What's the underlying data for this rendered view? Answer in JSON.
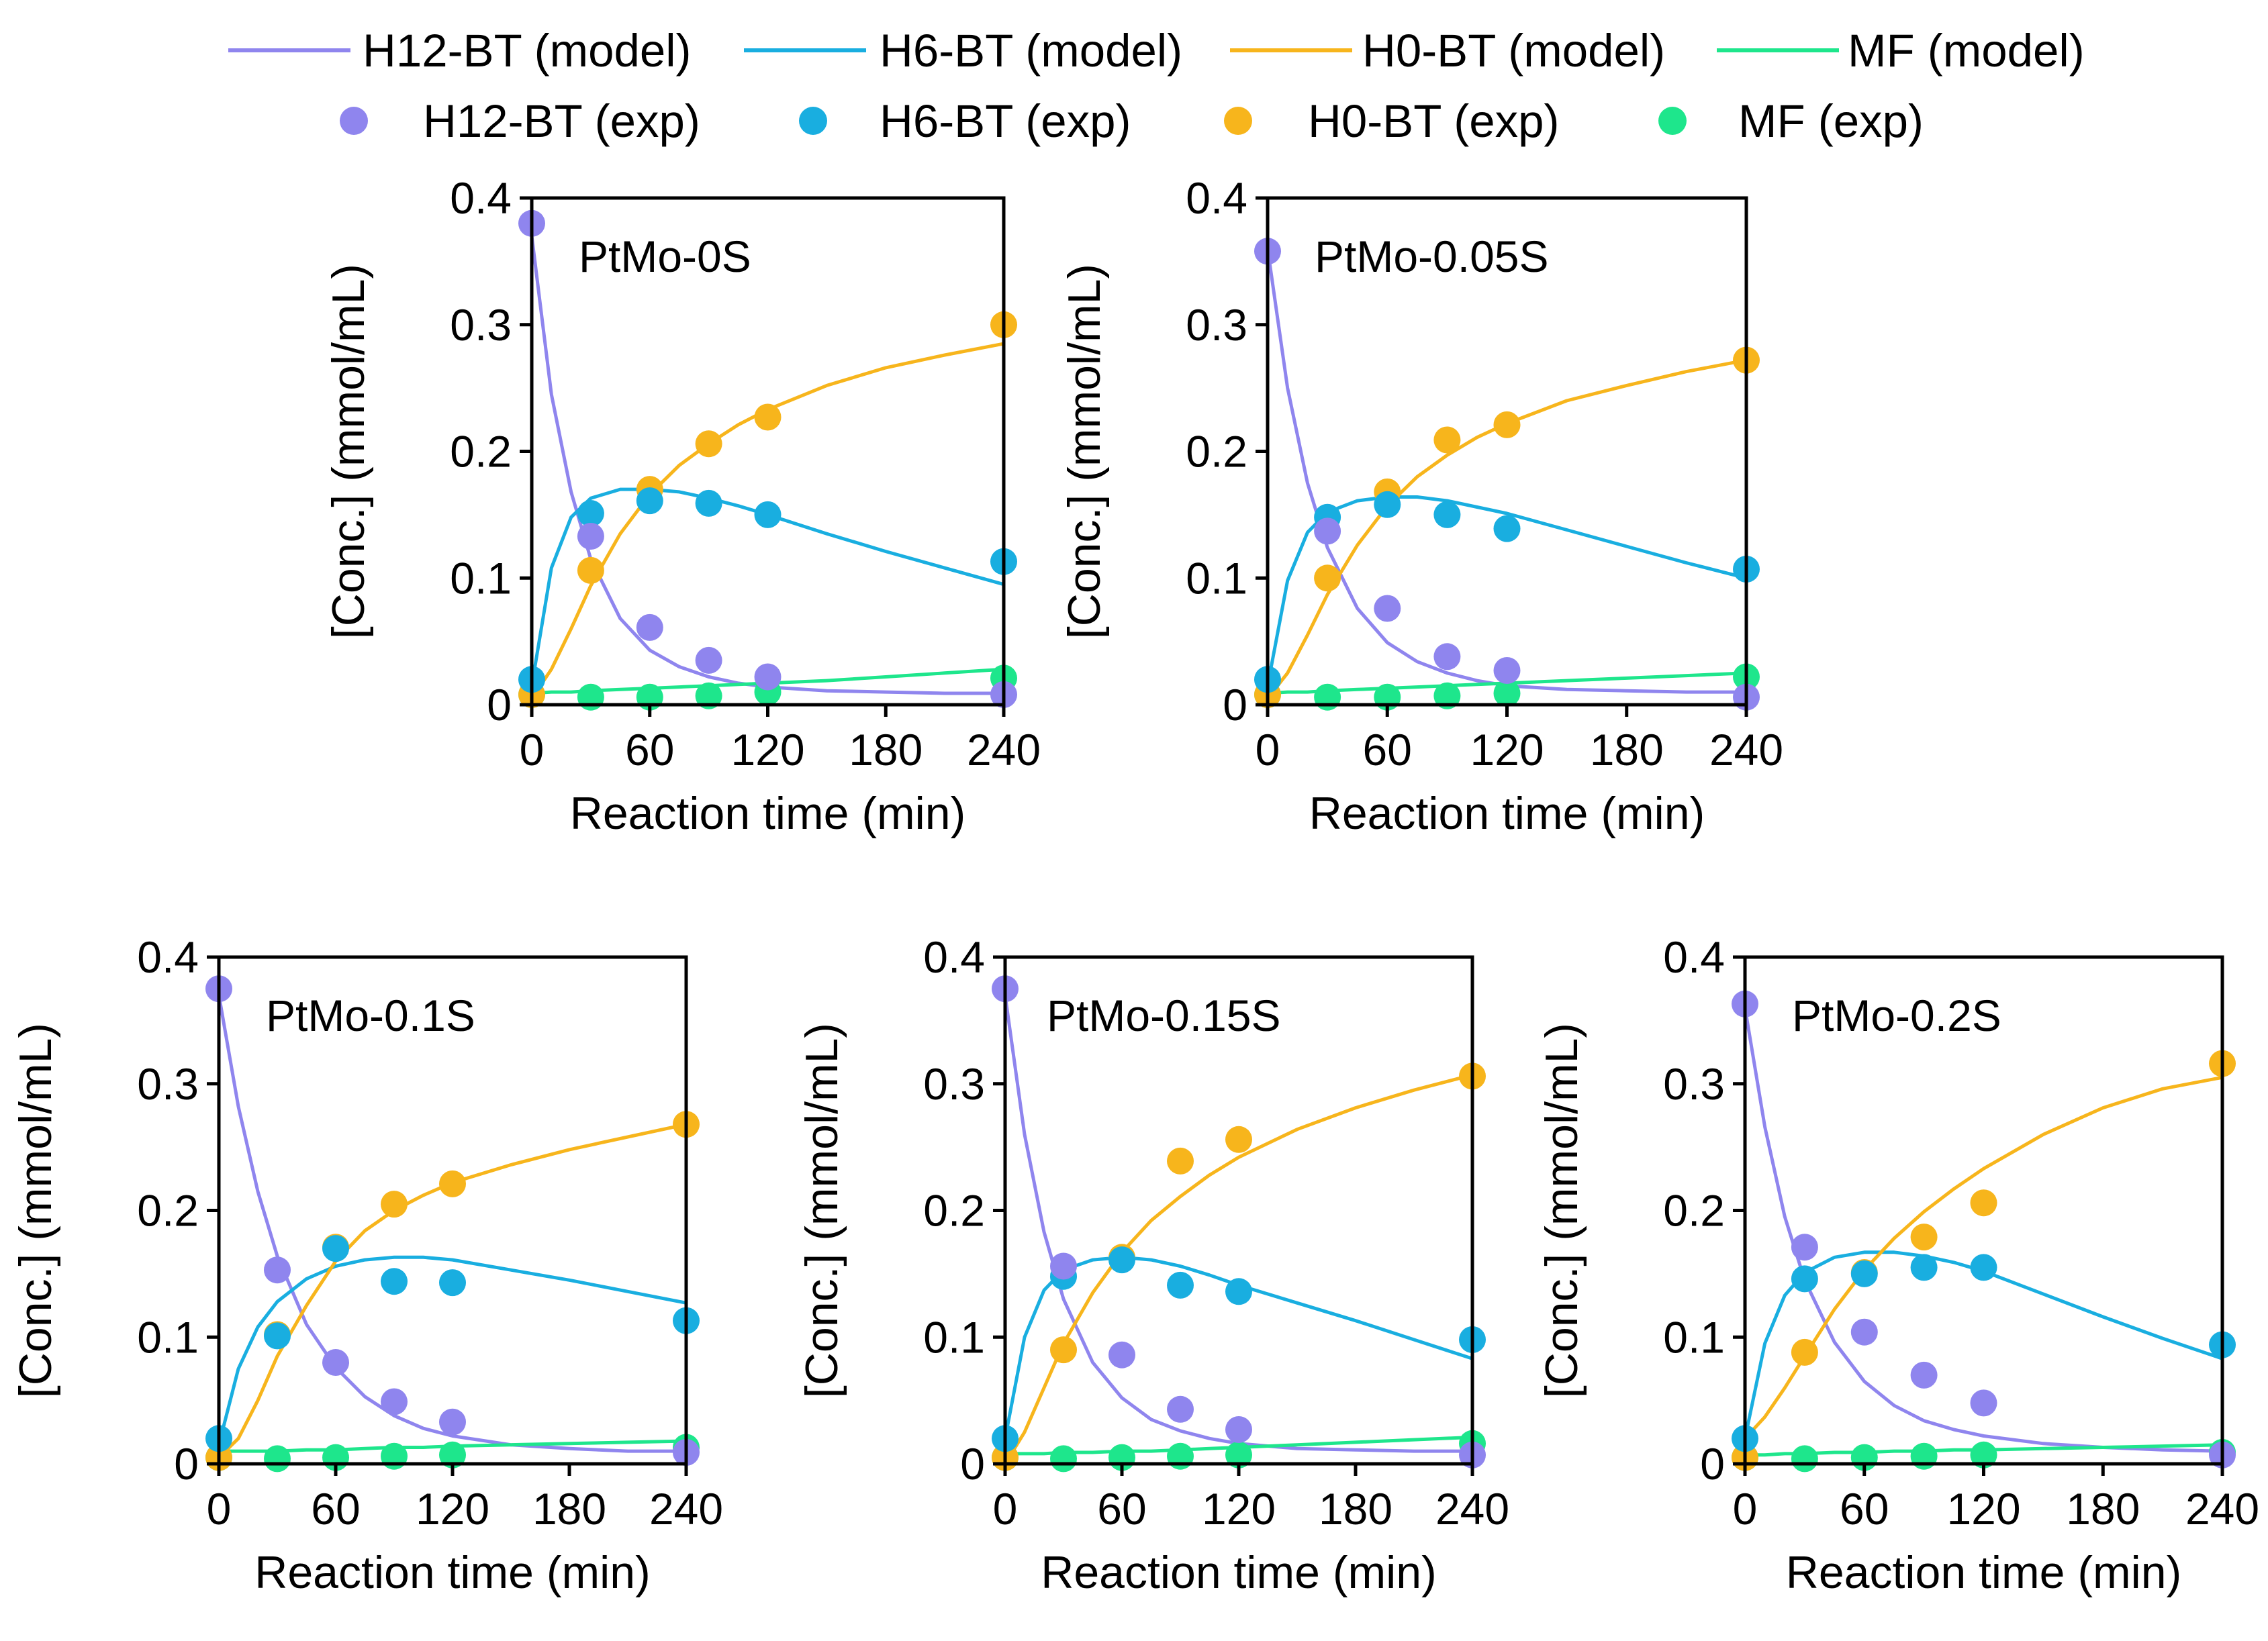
{
  "legend": {
    "model_suffix": "(model)",
    "exp_suffix": "(exp)",
    "entries": [
      {
        "series": "H12-BT",
        "model_label": "H12-BT (model)",
        "exp_label": "H12-BT (exp)",
        "color": "#8f85ee"
      },
      {
        "series": "H6-BT",
        "model_label": "H6-BT (model)",
        "exp_label": "H6-BT (exp)",
        "color": "#19aee0"
      },
      {
        "series": "H0-BT",
        "model_label": "H0-BT (model)",
        "exp_label": "H0-BT (exp)",
        "color": "#f7b51c"
      },
      {
        "series": "MF",
        "model_label": "MF (model)",
        "exp_label": "MF (exp)",
        "color": "#1ee68c"
      }
    ]
  },
  "chart_data": [
    {
      "type": "line+scatter",
      "title": "PtMo-0S",
      "xlabel": "Reaction time (min)",
      "ylabel": "[Conc.] (mmol/mL)",
      "xlim": [
        0,
        240
      ],
      "ylim": [
        0,
        0.4
      ],
      "xticks": [
        0,
        60,
        120,
        180,
        240
      ],
      "yticks": [
        0,
        0.1,
        0.2,
        0.3,
        0.4
      ],
      "ytick_labels": [
        "0",
        "0.1",
        "0.2",
        "0.3",
        "0.4"
      ],
      "experimental": {
        "x": [
          0,
          30,
          60,
          90,
          120,
          240
        ],
        "series": [
          {
            "name": "H12-BT",
            "values": [
              0.38,
              0.133,
              0.061,
              0.035,
              0.022,
              0.008
            ]
          },
          {
            "name": "H6-BT",
            "values": [
              0.02,
              0.151,
              0.161,
              0.159,
              0.15,
              0.113
            ]
          },
          {
            "name": "H0-BT",
            "values": [
              0.008,
              0.106,
              0.17,
              0.206,
              0.227,
              0.3
            ]
          },
          {
            "name": "MF",
            "values": [
              0.008,
              0.006,
              0.006,
              0.007,
              0.01,
              0.021
            ]
          }
        ]
      },
      "model": {
        "x": [
          0,
          10,
          20,
          30,
          45,
          60,
          75,
          90,
          105,
          120,
          150,
          180,
          210,
          240
        ],
        "series": [
          {
            "name": "H12-BT",
            "values": [
              0.37,
              0.245,
              0.168,
              0.115,
              0.068,
              0.043,
              0.03,
              0.022,
              0.017,
              0.014,
              0.011,
              0.01,
              0.009,
              0.009
            ]
          },
          {
            "name": "H6-BT",
            "values": [
              0.015,
              0.108,
              0.148,
              0.163,
              0.17,
              0.17,
              0.168,
              0.163,
              0.157,
              0.15,
              0.135,
              0.121,
              0.108,
              0.095
            ]
          },
          {
            "name": "H0-BT",
            "values": [
              0.005,
              0.028,
              0.06,
              0.094,
              0.135,
              0.166,
              0.189,
              0.206,
              0.221,
              0.233,
              0.252,
              0.266,
              0.276,
              0.285
            ]
          },
          {
            "name": "MF",
            "values": [
              0.009,
              0.01,
              0.01,
              0.011,
              0.012,
              0.013,
              0.014,
              0.015,
              0.016,
              0.017,
              0.019,
              0.022,
              0.025,
              0.028
            ]
          }
        ]
      }
    },
    {
      "type": "line+scatter",
      "title": "PtMo-0.05S",
      "xlabel": "Reaction time (min)",
      "ylabel": "[Conc.] (mmol/mL)",
      "xlim": [
        0,
        240
      ],
      "ylim": [
        0,
        0.4
      ],
      "xticks": [
        0,
        60,
        120,
        180,
        240
      ],
      "yticks": [
        0,
        0.1,
        0.2,
        0.3,
        0.4
      ],
      "ytick_labels": [
        "0",
        "0.1",
        "0.2",
        "0.3",
        "0.4"
      ],
      "experimental": {
        "x": [
          0,
          30,
          60,
          90,
          120,
          240
        ],
        "series": [
          {
            "name": "H12-BT",
            "values": [
              0.358,
              0.137,
              0.076,
              0.038,
              0.027,
              0.006
            ]
          },
          {
            "name": "H6-BT",
            "values": [
              0.02,
              0.148,
              0.158,
              0.15,
              0.139,
              0.107
            ]
          },
          {
            "name": "H0-BT",
            "values": [
              0.008,
              0.1,
              0.168,
              0.209,
              0.221,
              0.272
            ]
          },
          {
            "name": "MF",
            "values": [
              0.008,
              0.006,
              0.006,
              0.007,
              0.009,
              0.022
            ]
          }
        ]
      },
      "model": {
        "x": [
          0,
          10,
          20,
          30,
          45,
          60,
          75,
          90,
          105,
          120,
          150,
          180,
          210,
          240
        ],
        "series": [
          {
            "name": "H12-BT",
            "values": [
              0.36,
              0.25,
              0.175,
              0.124,
              0.076,
              0.049,
              0.034,
              0.025,
              0.019,
              0.015,
              0.012,
              0.011,
              0.01,
              0.01
            ]
          },
          {
            "name": "H6-BT",
            "values": [
              0.015,
              0.098,
              0.136,
              0.152,
              0.161,
              0.164,
              0.164,
              0.161,
              0.156,
              0.151,
              0.138,
              0.125,
              0.112,
              0.1
            ]
          },
          {
            "name": "H0-BT",
            "values": [
              0.005,
              0.025,
              0.055,
              0.087,
              0.126,
              0.157,
              0.18,
              0.197,
              0.211,
              0.222,
              0.24,
              0.252,
              0.263,
              0.272
            ]
          },
          {
            "name": "MF",
            "values": [
              0.009,
              0.01,
              0.01,
              0.011,
              0.012,
              0.013,
              0.014,
              0.015,
              0.016,
              0.017,
              0.019,
              0.021,
              0.023,
              0.025
            ]
          }
        ]
      }
    },
    {
      "type": "line+scatter",
      "title": "PtMo-0.1S",
      "xlabel": "Reaction time (min)",
      "ylabel": "[Conc.] (mmol/mL)",
      "xlim": [
        0,
        240
      ],
      "ylim": [
        0,
        0.4
      ],
      "xticks": [
        0,
        60,
        120,
        180,
        240
      ],
      "yticks": [
        0,
        0.1,
        0.2,
        0.3,
        0.4
      ],
      "ytick_labels": [
        "0",
        "0.1",
        "0.2",
        "0.3",
        "0.4"
      ],
      "experimental": {
        "x": [
          0,
          30,
          60,
          90,
          120,
          240
        ],
        "series": [
          {
            "name": "H12-BT",
            "values": [
              0.375,
              0.153,
              0.08,
              0.049,
              0.033,
              0.009
            ]
          },
          {
            "name": "H6-BT",
            "values": [
              0.02,
              0.101,
              0.17,
              0.144,
              0.143,
              0.113
            ]
          },
          {
            "name": "H0-BT",
            "values": [
              0.005,
              0.102,
              0.171,
              0.205,
              0.221,
              0.268
            ]
          },
          {
            "name": "MF",
            "values": [
              0.005,
              0.004,
              0.005,
              0.006,
              0.007,
              0.013
            ]
          }
        ]
      },
      "model": {
        "x": [
          0,
          10,
          20,
          30,
          45,
          60,
          75,
          90,
          105,
          120,
          150,
          180,
          210,
          240
        ],
        "series": [
          {
            "name": "H12-BT",
            "values": [
              0.37,
              0.282,
              0.215,
              0.164,
              0.11,
              0.076,
              0.053,
              0.038,
              0.028,
              0.022,
              0.015,
              0.012,
              0.01,
              0.01
            ]
          },
          {
            "name": "H6-BT",
            "values": [
              0.015,
              0.075,
              0.108,
              0.128,
              0.146,
              0.156,
              0.161,
              0.163,
              0.163,
              0.161,
              0.153,
              0.145,
              0.136,
              0.127
            ]
          },
          {
            "name": "H0-BT",
            "values": [
              0.005,
              0.02,
              0.05,
              0.085,
              0.125,
              0.16,
              0.184,
              0.2,
              0.212,
              0.222,
              0.236,
              0.248,
              0.258,
              0.268
            ]
          },
          {
            "name": "MF",
            "values": [
              0.01,
              0.01,
              0.01,
              0.01,
              0.011,
              0.011,
              0.012,
              0.013,
              0.013,
              0.014,
              0.015,
              0.016,
              0.017,
              0.018
            ]
          }
        ]
      }
    },
    {
      "type": "line+scatter",
      "title": "PtMo-0.15S",
      "xlabel": "Reaction time (min)",
      "ylabel": "[Conc.] (mmol/mL)",
      "xlim": [
        0,
        240
      ],
      "ylim": [
        0,
        0.4
      ],
      "xticks": [
        0,
        60,
        120,
        180,
        240
      ],
      "yticks": [
        0,
        0.1,
        0.2,
        0.3,
        0.4
      ],
      "ytick_labels": [
        "0",
        "0.1",
        "0.2",
        "0.3",
        "0.4"
      ],
      "experimental": {
        "x": [
          0,
          30,
          60,
          90,
          120,
          240
        ],
        "series": [
          {
            "name": "H12-BT",
            "values": [
              0.375,
              0.156,
              0.086,
              0.043,
              0.027,
              0.007
            ]
          },
          {
            "name": "H6-BT",
            "values": [
              0.02,
              0.148,
              0.161,
              0.141,
              0.136,
              0.098
            ]
          },
          {
            "name": "H0-BT",
            "values": [
              0.005,
              0.09,
              0.163,
              0.239,
              0.256,
              0.306
            ]
          },
          {
            "name": "MF",
            "values": [
              0.005,
              0.004,
              0.005,
              0.006,
              0.007,
              0.016
            ]
          }
        ]
      },
      "model": {
        "x": [
          0,
          10,
          20,
          30,
          45,
          60,
          75,
          90,
          105,
          120,
          150,
          180,
          210,
          240
        ],
        "series": [
          {
            "name": "H12-BT",
            "values": [
              0.37,
              0.26,
              0.183,
              0.13,
              0.08,
              0.052,
              0.035,
              0.026,
              0.02,
              0.016,
              0.012,
              0.011,
              0.01,
              0.01
            ]
          },
          {
            "name": "H6-BT",
            "values": [
              0.02,
              0.1,
              0.137,
              0.153,
              0.161,
              0.163,
              0.161,
              0.156,
              0.149,
              0.141,
              0.127,
              0.113,
              0.098,
              0.083
            ]
          },
          {
            "name": "H0-BT",
            "values": [
              0.0,
              0.025,
              0.06,
              0.095,
              0.135,
              0.167,
              0.192,
              0.211,
              0.228,
              0.242,
              0.264,
              0.281,
              0.295,
              0.307
            ]
          },
          {
            "name": "MF",
            "values": [
              0.008,
              0.008,
              0.008,
              0.009,
              0.009,
              0.01,
              0.01,
              0.011,
              0.012,
              0.013,
              0.015,
              0.017,
              0.019,
              0.021
            ]
          }
        ]
      }
    },
    {
      "type": "line+scatter",
      "title": "PtMo-0.2S",
      "xlabel": "Reaction time (min)",
      "ylabel": "[Conc.] (mmol/mL)",
      "xlim": [
        0,
        240
      ],
      "ylim": [
        0,
        0.4
      ],
      "xticks": [
        0,
        60,
        120,
        180,
        240
      ],
      "yticks": [
        0,
        0.1,
        0.2,
        0.3,
        0.4
      ],
      "ytick_labels": [
        "0",
        "0.1",
        "0.2",
        "0.3",
        "0.4"
      ],
      "experimental": {
        "x": [
          0,
          30,
          60,
          90,
          120,
          240
        ],
        "series": [
          {
            "name": "H12-BT",
            "values": [
              0.363,
              0.171,
              0.104,
              0.07,
              0.048,
              0.007
            ]
          },
          {
            "name": "H6-BT",
            "values": [
              0.02,
              0.146,
              0.15,
              0.155,
              0.155,
              0.094
            ]
          },
          {
            "name": "H0-BT",
            "values": [
              0.005,
              0.088,
              0.151,
              0.179,
              0.206,
              0.316
            ]
          },
          {
            "name": "MF",
            "values": [
              0.005,
              0.004,
              0.005,
              0.006,
              0.007,
              0.009
            ]
          }
        ]
      },
      "model": {
        "x": [
          0,
          10,
          20,
          30,
          45,
          60,
          75,
          90,
          105,
          120,
          150,
          180,
          210,
          240
        ],
        "series": [
          {
            "name": "H12-BT",
            "values": [
              0.36,
              0.266,
              0.195,
              0.145,
              0.096,
              0.065,
              0.046,
              0.034,
              0.027,
              0.022,
              0.016,
              0.013,
              0.011,
              0.01
            ]
          },
          {
            "name": "H6-BT",
            "values": [
              0.02,
              0.095,
              0.133,
              0.151,
              0.163,
              0.167,
              0.167,
              0.164,
              0.159,
              0.152,
              0.134,
              0.116,
              0.099,
              0.083
            ]
          },
          {
            "name": "H0-BT",
            "values": [
              0.02,
              0.037,
              0.06,
              0.085,
              0.122,
              0.153,
              0.178,
              0.199,
              0.217,
              0.233,
              0.26,
              0.281,
              0.296,
              0.305
            ]
          },
          {
            "name": "MF",
            "values": [
              0.007,
              0.007,
              0.008,
              0.008,
              0.009,
              0.009,
              0.01,
              0.01,
              0.011,
              0.011,
              0.012,
              0.013,
              0.014,
              0.015
            ]
          }
        ]
      }
    }
  ]
}
